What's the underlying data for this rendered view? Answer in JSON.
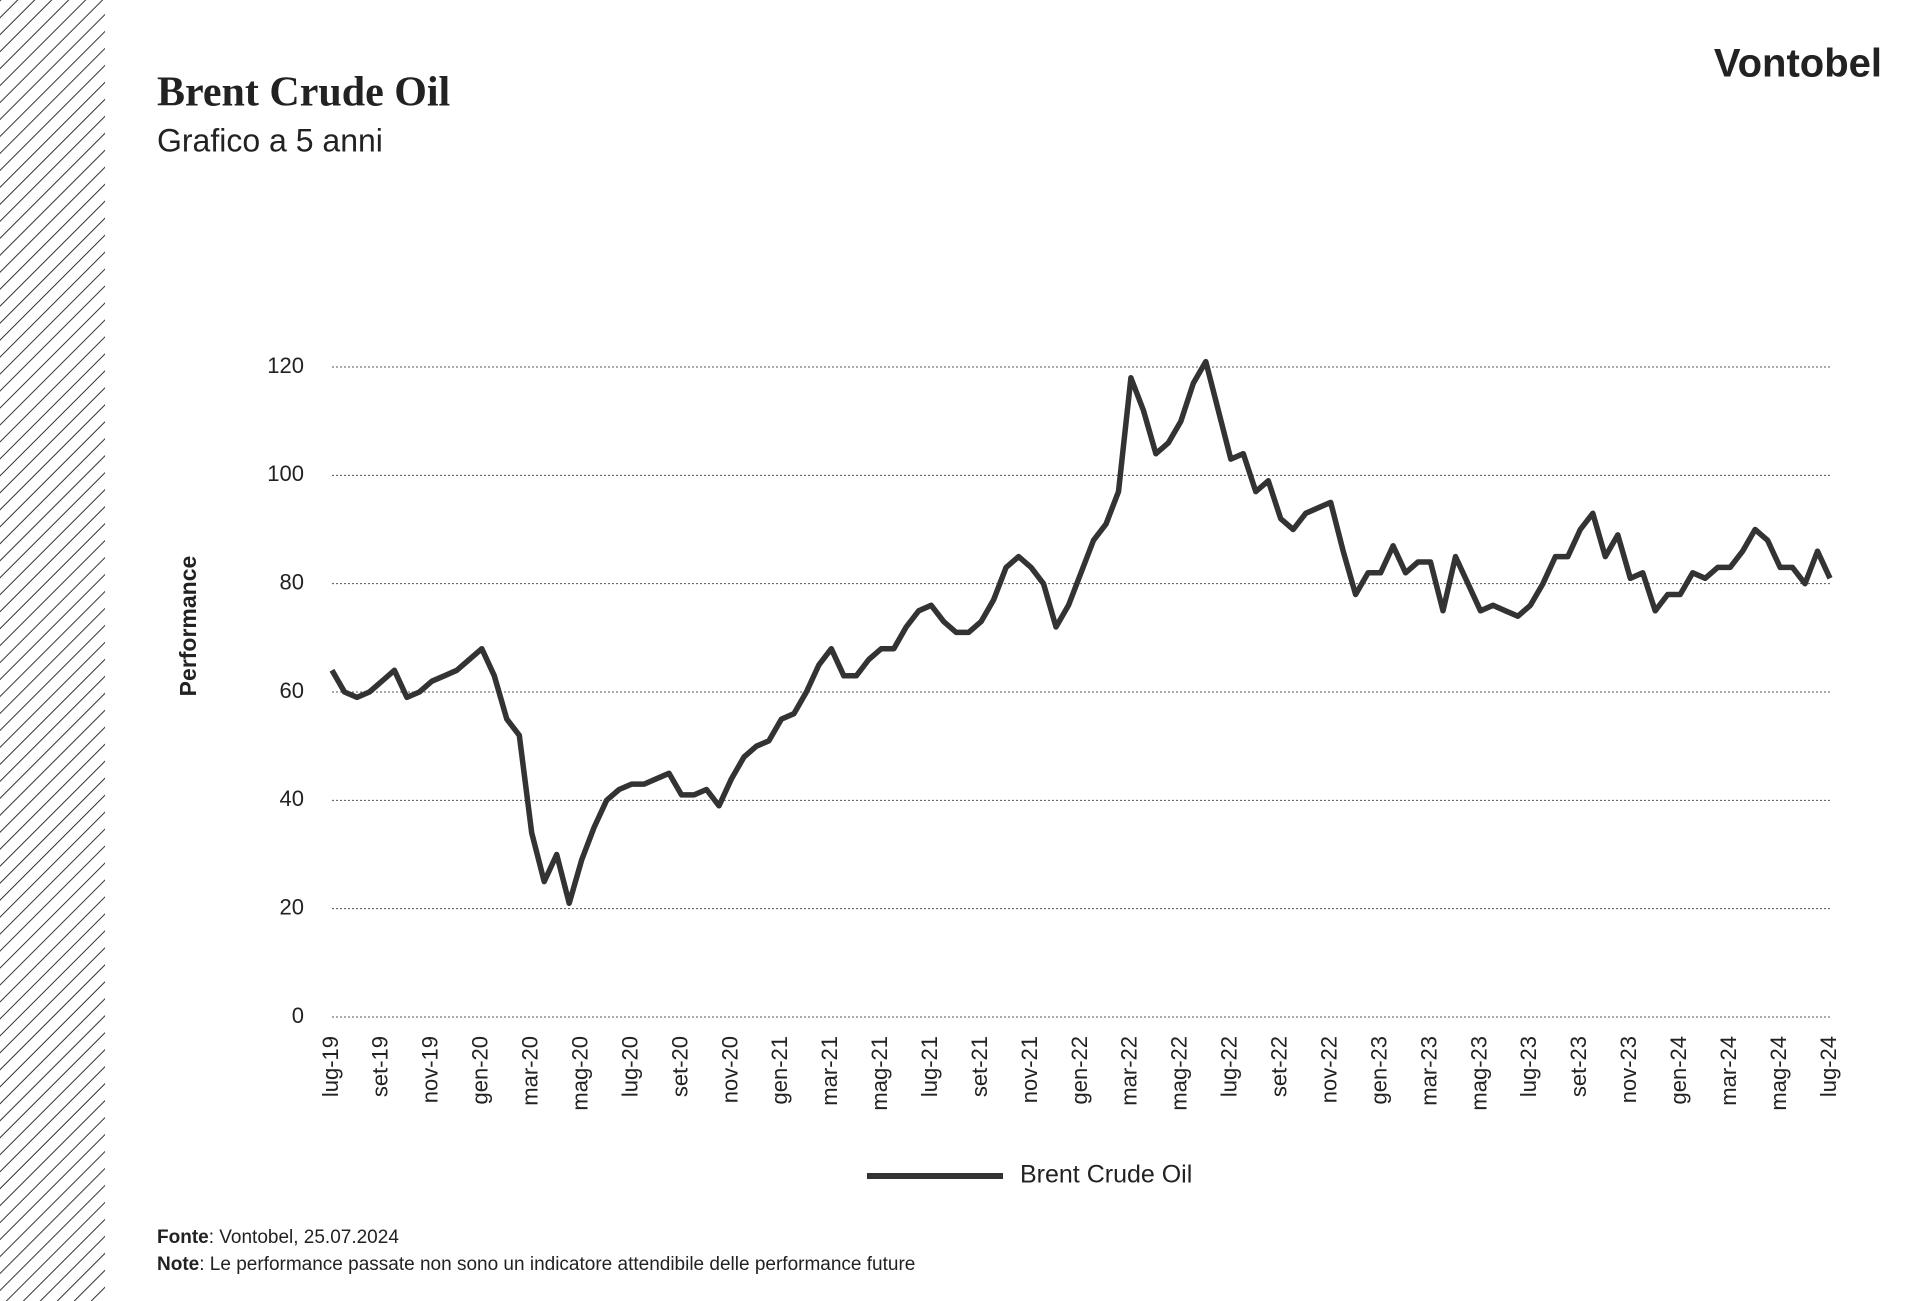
{
  "brand": "Vontobel",
  "footer": {
    "source_label": "Fonte",
    "source_text": ": Vontobel, 25.07.2024",
    "note_label": "Note",
    "note_text": ": Le performance passate non sono un indicatore attendibile delle performance future"
  },
  "chart_data": {
    "type": "line",
    "title": "Brent Crude Oil",
    "subtitle": "Grafico a 5 anni",
    "y_label": "Performance",
    "categories": [
      "lug-19",
      null,
      null,
      null,
      "set-19",
      null,
      null,
      null,
      "nov-19",
      null,
      null,
      null,
      "gen-20",
      null,
      null,
      null,
      "mar-20",
      null,
      null,
      null,
      "mag-20",
      null,
      null,
      null,
      "lug-20",
      null,
      null,
      null,
      "set-20",
      null,
      null,
      null,
      "nov-20",
      null,
      null,
      null,
      "gen-21",
      null,
      null,
      null,
      "mar-21",
      null,
      null,
      null,
      "mag-21",
      null,
      null,
      null,
      "lug-21",
      null,
      null,
      null,
      "set-21",
      null,
      null,
      null,
      "nov-21",
      null,
      null,
      null,
      "gen-22",
      null,
      null,
      null,
      "mar-22",
      null,
      null,
      null,
      "mag-22",
      null,
      null,
      null,
      "lug-22",
      null,
      null,
      null,
      "set-22",
      null,
      null,
      null,
      "nov-22",
      null,
      null,
      null,
      "gen-23",
      null,
      null,
      null,
      "mar-23",
      null,
      null,
      null,
      "mag-23",
      null,
      null,
      null,
      "lug-23",
      null,
      null,
      null,
      "set-23",
      null,
      null,
      null,
      "nov-23",
      null,
      null,
      null,
      "gen-24",
      null,
      null,
      null,
      "mar-24",
      null,
      null,
      null,
      "mag-24",
      null,
      null,
      null,
      "lug-24"
    ],
    "series": [
      {
        "name": "Brent Crude Oil",
        "color": "#333333",
        "values": [
          64,
          60,
          59,
          60,
          62,
          64,
          59,
          60,
          62,
          63,
          64,
          66,
          68,
          63,
          55,
          52,
          34,
          25,
          30,
          21,
          29,
          35,
          40,
          42,
          43,
          43,
          44,
          45,
          41,
          41,
          42,
          39,
          44,
          48,
          50,
          51,
          55,
          56,
          60,
          65,
          68,
          63,
          63,
          66,
          68,
          68,
          72,
          75,
          76,
          73,
          71,
          71,
          73,
          77,
          83,
          85,
          83,
          80,
          72,
          76,
          82,
          88,
          91,
          97,
          118,
          112,
          104,
          106,
          110,
          117,
          121,
          112,
          103,
          104,
          97,
          99,
          92,
          90,
          93,
          94,
          95,
          86,
          78,
          82,
          82,
          87,
          82,
          84,
          84,
          75,
          85,
          80,
          75,
          76,
          75,
          74,
          76,
          80,
          85,
          85,
          90,
          93,
          85,
          89,
          81,
          82,
          75,
          78,
          78,
          82,
          81,
          83,
          83,
          86,
          90,
          88,
          83,
          83,
          80,
          86,
          81
        ]
      }
    ],
    "ylim": [
      0,
      120
    ],
    "yticks": [
      0,
      20,
      40,
      60,
      80,
      100,
      120
    ],
    "grid": true,
    "legend": "bottom"
  }
}
